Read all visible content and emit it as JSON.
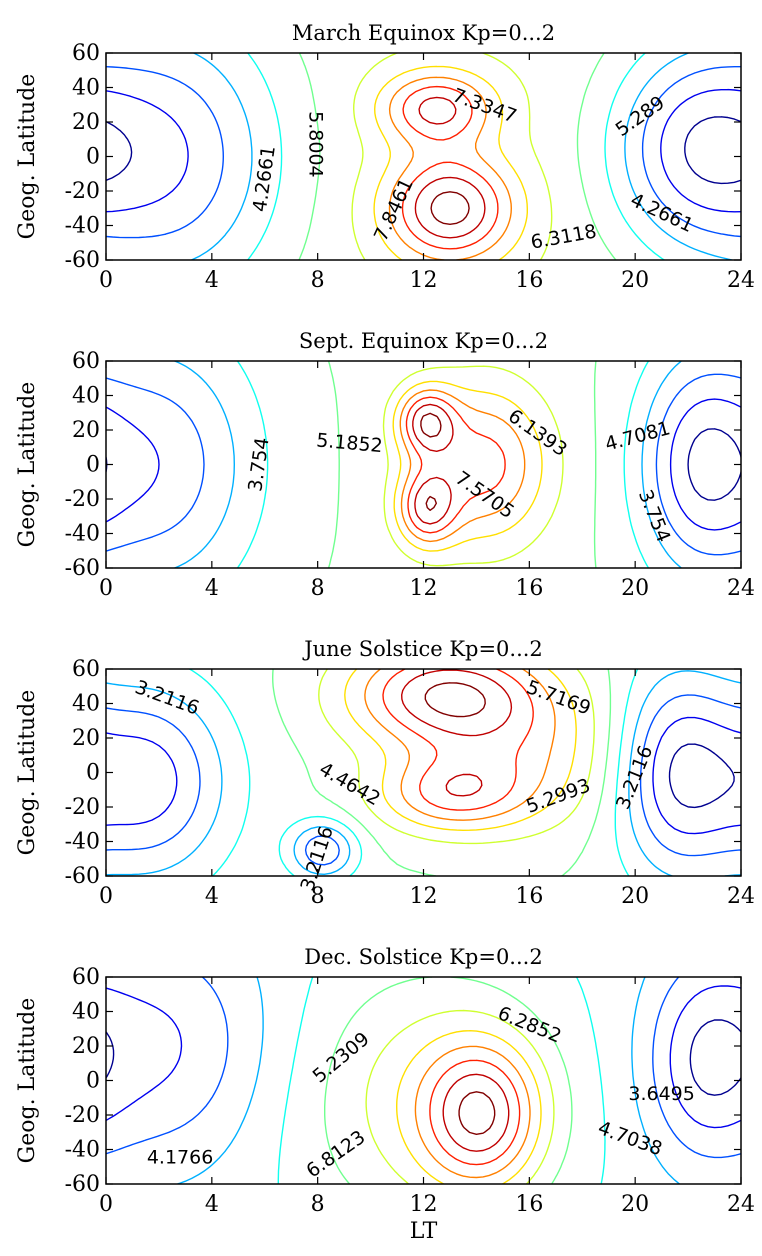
{
  "chart_data": [
    {
      "type": "contour",
      "title": "March Equinox Kp=0...2",
      "xlabel": "",
      "ylabel": "Geog. Latitude",
      "xlim": [
        0,
        24
      ],
      "ylim": [
        -60,
        60
      ],
      "xticks": [
        0,
        4,
        8,
        12,
        16,
        20,
        24
      ],
      "yticks": [
        -60,
        -40,
        -20,
        0,
        20,
        40,
        60
      ],
      "contour_labels": [
        "7.3347",
        "5.289",
        "5.8004",
        "4.2661",
        "7.8461",
        "6.3118",
        "4.2661"
      ],
      "label_positions": [
        [
          14.3,
          29
        ],
        [
          20.2,
          23
        ],
        [
          7.9,
          7
        ],
        [
          6.0,
          -13
        ],
        [
          10.9,
          -31
        ],
        [
          17.3,
          -47
        ],
        [
          21.0,
          -33
        ]
      ],
      "label_angles": [
        20,
        -35,
        90,
        -82,
        -65,
        -10,
        25
      ],
      "field": {
        "base": 5.2,
        "baseline": 0,
        "components": [
          {
            "amp": 3.4,
            "lt": 13.0,
            "lat": -30,
            "slt": 1.7,
            "slat": 22
          },
          {
            "amp": 2.7,
            "lt": 12.5,
            "lat": 28,
            "slt": 1.5,
            "slat": 15
          },
          {
            "amp": -2.7,
            "lt": 2.5,
            "lat": 0,
            "slt": 3.0,
            "slat": 60
          },
          {
            "amp": -2.6,
            "lt": 22.0,
            "lat": 5,
            "slt": 2.2,
            "slat": 42
          }
        ]
      }
    },
    {
      "type": "contour",
      "title": "Sept. Equinox Kp=0...2",
      "xlabel": "",
      "ylabel": "Geog. Latitude",
      "xlim": [
        0,
        24
      ],
      "ylim": [
        -60,
        60
      ],
      "xticks": [
        0,
        4,
        8,
        12,
        16,
        20,
        24
      ],
      "yticks": [
        -60,
        -40,
        -20,
        0,
        20,
        40,
        60
      ],
      "contour_labels": [
        "3.754",
        "5.1852",
        "6.1393",
        "4.7081",
        "7.5705",
        "3.754"
      ],
      "label_positions": [
        [
          5.8,
          0
        ],
        [
          9.2,
          12
        ],
        [
          16.3,
          18
        ],
        [
          20.1,
          16
        ],
        [
          14.3,
          -18
        ],
        [
          20.7,
          -30
        ]
      ],
      "label_angles": [
        -82,
        5,
        35,
        -15,
        35,
        68
      ],
      "field": {
        "base": 5.0,
        "baseline": 0,
        "components": [
          {
            "amp": 2.8,
            "lt": 12.1,
            "lat": 25,
            "slt": 0.8,
            "slat": 14
          },
          {
            "amp": 2.6,
            "lt": 12.1,
            "lat": -25,
            "slt": 0.8,
            "slat": 16
          },
          {
            "amp": 2.5,
            "lt": 14.3,
            "lat": 0,
            "slt": 1.7,
            "slat": 32
          },
          {
            "amp": -2.2,
            "lt": 2.0,
            "lat": 0,
            "slt": 2.6,
            "slat": 55
          },
          {
            "amp": -2.3,
            "lt": 22.3,
            "lat": 0,
            "slt": 1.6,
            "slat": 45
          }
        ]
      }
    },
    {
      "type": "contour",
      "title": "June Solstice Kp=0...2",
      "xlabel": "",
      "ylabel": "Geog. Latitude",
      "xlim": [
        0,
        24
      ],
      "ylim": [
        -60,
        60
      ],
      "xticks": [
        0,
        4,
        8,
        12,
        16,
        20,
        24
      ],
      "yticks": [
        -60,
        -40,
        -20,
        0,
        20,
        40,
        60
      ],
      "contour_labels": [
        "3.2116",
        "5.7169",
        "4.4642",
        "5.2993",
        "3.2116",
        "3.2116"
      ],
      "label_positions": [
        [
          2.3,
          43
        ],
        [
          17.1,
          43
        ],
        [
          9.2,
          -7
        ],
        [
          17.1,
          -14
        ],
        [
          20.0,
          -3
        ],
        [
          8.0,
          -50
        ]
      ],
      "label_angles": [
        20,
        20,
        30,
        -20,
        -68,
        -72
      ],
      "field": {
        "base": 4.4,
        "baseline": 0,
        "components": [
          {
            "amp": 2.4,
            "lt": 12.8,
            "lat": 45,
            "slt": 2.6,
            "slat": 22
          },
          {
            "amp": 1.6,
            "lt": 13.0,
            "lat": -12,
            "slt": 2.0,
            "slat": 16
          },
          {
            "amp": 1.0,
            "lt": 16.0,
            "lat": 10,
            "slt": 2.5,
            "slat": 30
          },
          {
            "amp": -1.8,
            "lt": 1.5,
            "lat": -5,
            "slt": 2.2,
            "slat": 40
          },
          {
            "amp": -1.5,
            "lt": 8.2,
            "lat": -45,
            "slt": 0.9,
            "slat": 12
          },
          {
            "amp": -1.8,
            "lt": 21.5,
            "lat": 0,
            "slt": 1.6,
            "slat": 42
          }
        ]
      }
    },
    {
      "type": "contour",
      "title": "Dec. Solstice Kp=0...2",
      "xlabel": "LT",
      "ylabel": "Geog. Latitude",
      "xlim": [
        0,
        24
      ],
      "ylim": [
        -60,
        60
      ],
      "xticks": [
        0,
        4,
        8,
        12,
        16,
        20,
        24
      ],
      "yticks": [
        -60,
        -40,
        -20,
        0,
        20,
        40,
        60
      ],
      "contour_labels": [
        "6.2852",
        "5.2309",
        "3.6495",
        "4.7038",
        "4.1766",
        "6.8123"
      ],
      "label_positions": [
        [
          16.0,
          32
        ],
        [
          8.9,
          13
        ],
        [
          21.0,
          -8
        ],
        [
          19.8,
          -34
        ],
        [
          2.8,
          -45
        ],
        [
          8.7,
          -43
        ]
      ],
      "label_angles": [
        22,
        -40,
        0,
        20,
        0,
        -35
      ],
      "field": {
        "base": 4.6,
        "baseline": -5,
        "components": [
          {
            "amp": 2.5,
            "lt": 14.2,
            "lat": -20,
            "slt": 1.6,
            "slat": 30
          },
          {
            "amp": 1.2,
            "lt": 12.0,
            "lat": -10,
            "slt": 3.5,
            "slat": 55
          },
          {
            "amp": -1.3,
            "lt": 2.0,
            "lat": 20,
            "slt": 3.0,
            "slat": 50
          },
          {
            "amp": -1.2,
            "lt": 22.5,
            "lat": 10,
            "slt": 1.5,
            "slat": 40
          }
        ]
      }
    }
  ]
}
